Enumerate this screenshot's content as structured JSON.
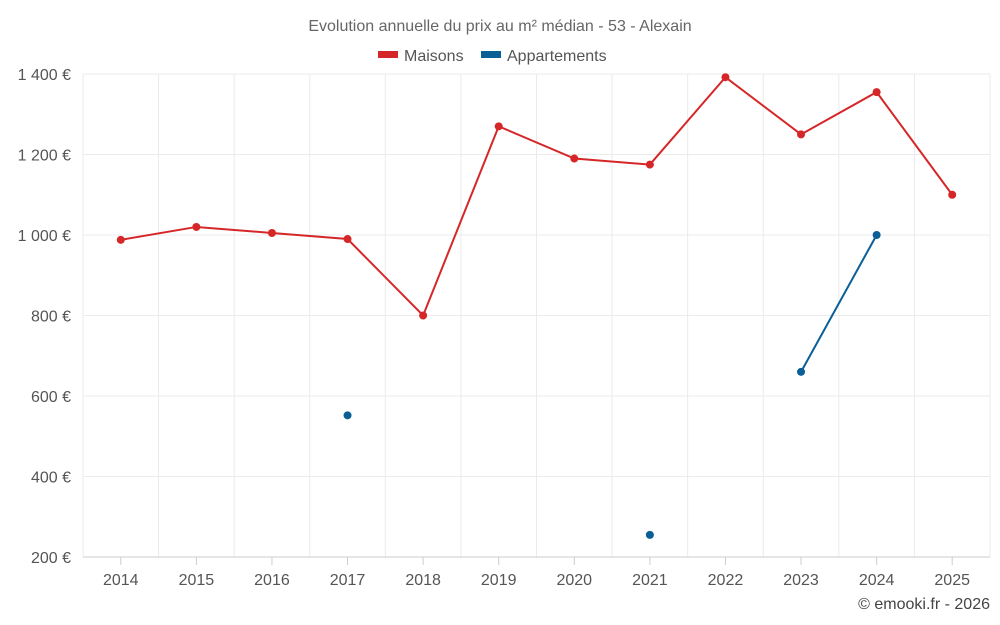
{
  "chart_data": {
    "type": "line",
    "title": "Evolution annuelle du prix au m² médian - 53 - Alexain",
    "categories": [
      "2014",
      "2015",
      "2016",
      "2017",
      "2018",
      "2019",
      "2020",
      "2021",
      "2022",
      "2023",
      "2024",
      "2025"
    ],
    "ylim": [
      200,
      1400
    ],
    "yticks": [
      200,
      400,
      600,
      800,
      1000,
      1200,
      1400
    ],
    "ytick_labels": [
      "200 €",
      "400 €",
      "600 €",
      "800 €",
      "1 000 €",
      "1 200 €",
      "1 400 €"
    ],
    "grid": true,
    "legend_position": "top-center",
    "series": [
      {
        "name": "Maisons",
        "color": "#d62728",
        "values": [
          988,
          1020,
          1005,
          990,
          800,
          1270,
          1190,
          1175,
          1392,
          1250,
          1355,
          1100
        ]
      },
      {
        "name": "Appartements",
        "color": "#0a5f97",
        "values": [
          null,
          null,
          null,
          552,
          null,
          null,
          null,
          255,
          null,
          660,
          1000,
          null
        ]
      }
    ]
  },
  "credit": "© emooki.fr - 2026"
}
